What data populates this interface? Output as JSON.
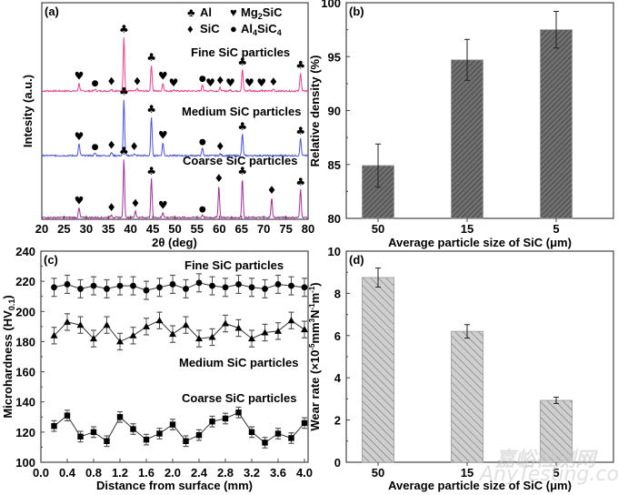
{
  "chart_data": [
    {
      "panel": "(a)",
      "type": "line",
      "xlabel": "2θ (deg)",
      "ylabel": "Intesity (a.u.)",
      "xlim": [
        20,
        80
      ],
      "xticks": [
        20,
        25,
        30,
        35,
        40,
        45,
        50,
        55,
        60,
        65,
        70,
        75,
        80
      ],
      "legend": [
        {
          "symbol": "♣",
          "label": "Al"
        },
        {
          "symbol": "♥",
          "label": "Mg2SiC"
        },
        {
          "symbol": "♦",
          "label": "SiC"
        },
        {
          "symbol": "●",
          "label": "Al4SiC4"
        }
      ],
      "series": [
        {
          "name": "Fine SiC particles",
          "color": "#e8408a",
          "peaks": [
            {
              "x": 28.4,
              "h": 0.35,
              "marker": "♥"
            },
            {
              "x": 32.0,
              "h": 0.08,
              "marker": "●"
            },
            {
              "x": 35.7,
              "h": 0.1,
              "marker": "♦"
            },
            {
              "x": 38.5,
              "h": 2.5,
              "marker": "♣"
            },
            {
              "x": 41.5,
              "h": 0.1,
              "marker": "♦"
            },
            {
              "x": 44.7,
              "h": 1.2,
              "marker": "♣"
            },
            {
              "x": 47.3,
              "h": 0.35,
              "marker": "♥"
            },
            {
              "x": 49.7,
              "h": 0.05,
              "marker": "♥"
            },
            {
              "x": 56.2,
              "h": 0.3,
              "marker": "●"
            },
            {
              "x": 58.0,
              "h": 0.05,
              "marker": "♥"
            },
            {
              "x": 60.2,
              "h": 0.15,
              "marker": "♦"
            },
            {
              "x": 62.5,
              "h": 0.05,
              "marker": "♥"
            },
            {
              "x": 65.2,
              "h": 1.0,
              "marker": "♣"
            },
            {
              "x": 66.8,
              "h": 0.05,
              "marker": "♥"
            },
            {
              "x": 69.5,
              "h": 0.05,
              "marker": "♥"
            },
            {
              "x": 72.2,
              "h": 0.08,
              "marker": "♦"
            },
            {
              "x": 78.3,
              "h": 0.85,
              "marker": "♣"
            }
          ]
        },
        {
          "name": "Medium SiC particles",
          "color": "#4a52e0",
          "peaks": [
            {
              "x": 28.4,
              "h": 0.55,
              "marker": "♥"
            },
            {
              "x": 32.0,
              "h": 0.12,
              "marker": "●"
            },
            {
              "x": 35.7,
              "h": 0.15,
              "marker": "♦"
            },
            {
              "x": 38.5,
              "h": 2.6,
              "marker": "♣"
            },
            {
              "x": 40.8,
              "h": 0.08,
              "marker": "♦"
            },
            {
              "x": 44.7,
              "h": 1.8,
              "marker": "♣"
            },
            {
              "x": 47.3,
              "h": 0.6,
              "marker": "♥"
            },
            {
              "x": 56.2,
              "h": 0.35,
              "marker": "●"
            },
            {
              "x": 60.2,
              "h": 0.08,
              "marker": "♦"
            },
            {
              "x": 65.2,
              "h": 1.0,
              "marker": "♣"
            },
            {
              "x": 78.3,
              "h": 0.8,
              "marker": "♣"
            }
          ]
        },
        {
          "name": "Coarse SiC particles",
          "color": "#a0309a",
          "peaks": [
            {
              "x": 28.4,
              "h": 0.4,
              "marker": "♥"
            },
            {
              "x": 35.7,
              "h": 0.12,
              "marker": "♦"
            },
            {
              "x": 38.5,
              "h": 2.5,
              "marker": "♣"
            },
            {
              "x": 41.1,
              "h": 0.28,
              "marker": "♦"
            },
            {
              "x": 44.7,
              "h": 1.65,
              "marker": "♣"
            },
            {
              "x": 47.3,
              "h": 0.22,
              "marker": "♥"
            },
            {
              "x": 56.2,
              "h": 0.1,
              "marker": "●"
            },
            {
              "x": 59.9,
              "h": 1.35,
              "marker": "♦"
            },
            {
              "x": 65.2,
              "h": 1.65,
              "marker": "♣"
            },
            {
              "x": 71.8,
              "h": 0.85,
              "marker": "♦"
            },
            {
              "x": 78.3,
              "h": 1.2,
              "marker": "♣"
            }
          ]
        }
      ]
    },
    {
      "panel": "(b)",
      "type": "bar",
      "categories": [
        "50",
        "15",
        "5"
      ],
      "values": [
        84.9,
        94.7,
        97.5
      ],
      "errors": [
        2.0,
        1.9,
        1.7
      ],
      "xlabel": "Average particle size of SiC (μm)",
      "ylabel": "Relative density (%)",
      "ylim": [
        80,
        100
      ],
      "yticks": [
        80,
        85,
        90,
        95,
        100
      ],
      "bar_color": "#555555"
    },
    {
      "panel": "(c)",
      "type": "line",
      "xlabel": "Distance from surface (mm)",
      "ylabel": "Microhardness (HV0.1)",
      "xlim": [
        0,
        4.0
      ],
      "ylim": [
        100,
        240
      ],
      "xticks": [
        "0.0",
        "0.4",
        "0.8",
        "1.2",
        "1.6",
        "2.0",
        "2.4",
        "2.8",
        "3.2",
        "3.6",
        "4.0"
      ],
      "yticks": [
        100,
        120,
        140,
        160,
        180,
        200,
        220,
        240
      ],
      "x": [
        0.2,
        0.4,
        0.6,
        0.8,
        1.0,
        1.2,
        1.4,
        1.6,
        1.8,
        2.0,
        2.2,
        2.4,
        2.6,
        2.8,
        3.0,
        3.2,
        3.4,
        3.6,
        3.8,
        4.0
      ],
      "series": [
        {
          "name": "Fine SiC particles",
          "marker": "circle",
          "values": [
            216,
            218,
            215,
            217,
            215,
            217,
            217,
            214,
            216,
            218,
            215,
            219,
            217,
            216,
            218,
            216,
            215,
            218,
            217,
            216
          ],
          "error": 6
        },
        {
          "name": "Medium SiC particles",
          "marker": "triangle",
          "values": [
            184,
            193,
            191,
            182,
            191,
            180,
            184,
            190,
            194,
            185,
            191,
            182,
            183,
            192,
            189,
            182,
            186,
            187,
            194,
            188
          ],
          "error": 5.5
        },
        {
          "name": "Coarse SiC particles",
          "marker": "square",
          "values": [
            124,
            131,
            117,
            120,
            114,
            130,
            122,
            115,
            119,
            125,
            114,
            118,
            127,
            129,
            133,
            120,
            113,
            119,
            116,
            126
          ],
          "error": 3.5
        }
      ]
    },
    {
      "panel": "(d)",
      "type": "bar",
      "categories": [
        "50",
        "15",
        "5"
      ],
      "values": [
        8.75,
        6.2,
        2.93
      ],
      "errors": [
        0.45,
        0.32,
        0.15
      ],
      "xlabel": "Average particle size of SiC (μm)",
      "ylabel": "Wear rate (×10⁻⁵mm³N⁻¹m⁻¹)",
      "ylim": [
        0,
        10
      ],
      "yticks": [
        0,
        2,
        4,
        6,
        8,
        10
      ],
      "bar_color": "#cccccc"
    }
  ],
  "watermark": {
    "cn": "嘉峪检测网",
    "en": "AnyTesting.com"
  }
}
